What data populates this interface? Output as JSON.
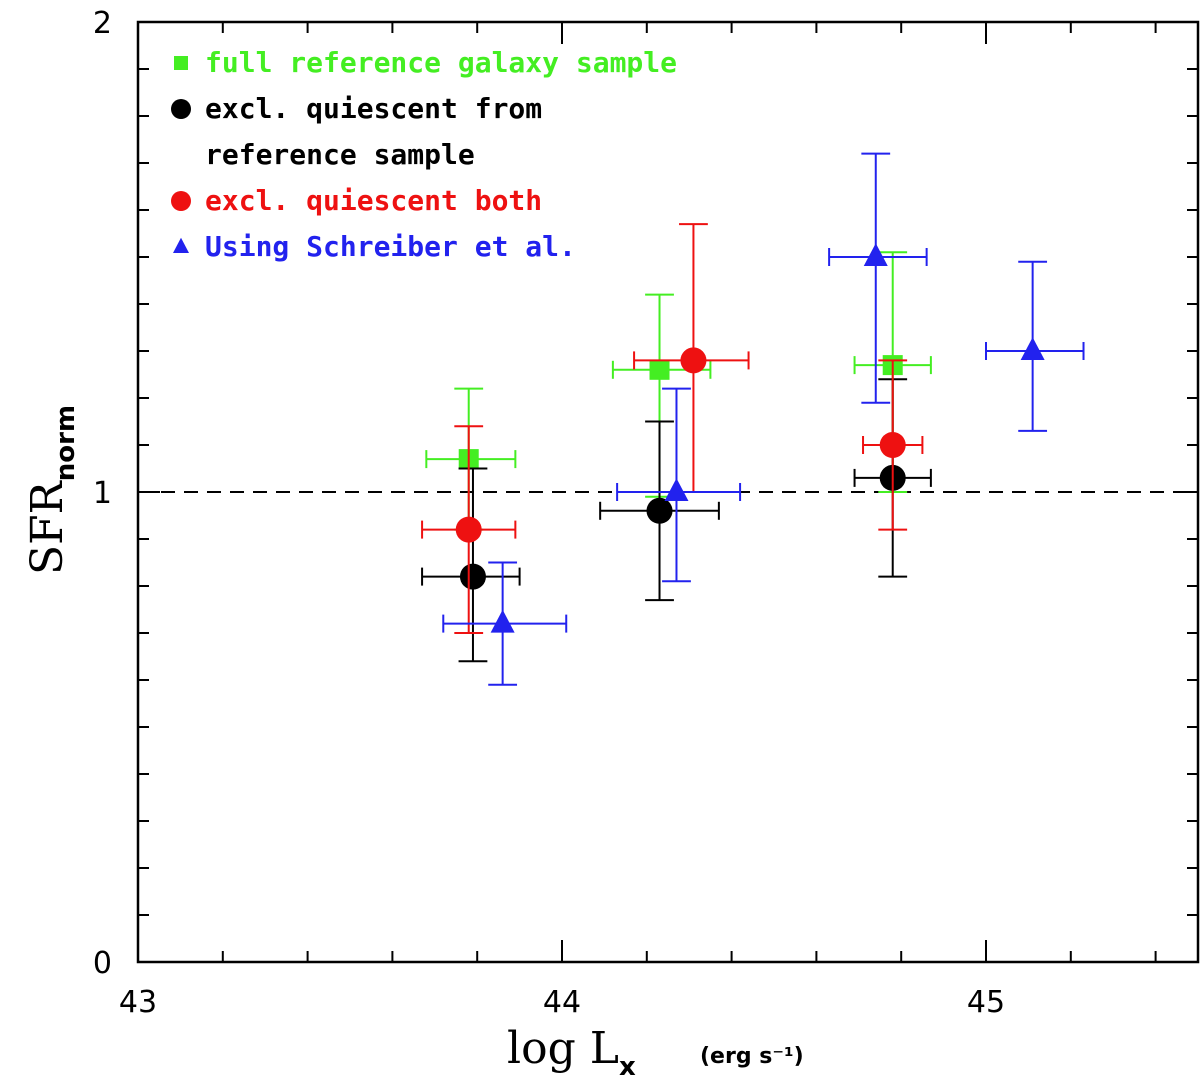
{
  "chart_data": {
    "type": "scatter",
    "xlabel": "log L",
    "xlabel_sub": "x",
    "xlabel_unit": "(erg s⁻¹)",
    "ylabel": "SFR",
    "ylabel_sub": "norm",
    "xlim": [
      43,
      45.5
    ],
    "ylim": [
      0,
      2
    ],
    "xticks": [
      43,
      44,
      45
    ],
    "xtick_labels": [
      "43",
      "44",
      "45"
    ],
    "yticks": [
      0,
      1,
      2
    ],
    "ytick_labels": [
      "0",
      "1",
      "2"
    ],
    "reference_line": {
      "y": 1,
      "style": "dashed"
    },
    "legend_position": "top-left",
    "series": [
      {
        "name": "full reference galaxy sample",
        "label_lines": [
          "full reference galaxy sample"
        ],
        "marker": "square",
        "color": "#44ee22",
        "points": [
          {
            "x": 43.78,
            "y": 1.07,
            "xerr": [
              0.1,
              0.11
            ],
            "yerr": [
              0.15,
              0.15
            ]
          },
          {
            "x": 44.23,
            "y": 1.26,
            "xerr": [
              0.11,
              0.12
            ],
            "yerr": [
              0.27,
              0.16
            ]
          },
          {
            "x": 44.78,
            "y": 1.27,
            "xerr": [
              0.09,
              0.09
            ],
            "yerr": [
              0.27,
              0.24
            ]
          }
        ]
      },
      {
        "name": "excl. quiescent from reference sample",
        "label_lines": [
          "excl. quiescent from",
          "reference sample"
        ],
        "marker": "circle",
        "color": "#000000",
        "points": [
          {
            "x": 43.79,
            "y": 0.82,
            "xerr": [
              0.12,
              0.11
            ],
            "yerr": [
              0.18,
              0.23
            ]
          },
          {
            "x": 44.23,
            "y": 0.96,
            "xerr": [
              0.14,
              0.14
            ],
            "yerr": [
              0.19,
              0.19
            ]
          },
          {
            "x": 44.78,
            "y": 1.03,
            "xerr": [
              0.09,
              0.09
            ],
            "yerr": [
              0.21,
              0.21
            ]
          }
        ]
      },
      {
        "name": "excl. quiescent both",
        "label_lines": [
          "excl. quiescent both"
        ],
        "marker": "circle",
        "color": "#ee1111",
        "points": [
          {
            "x": 43.78,
            "y": 0.92,
            "xerr": [
              0.11,
              0.11
            ],
            "yerr": [
              0.22,
              0.22
            ]
          },
          {
            "x": 44.31,
            "y": 1.28,
            "xerr": [
              0.14,
              0.13
            ],
            "yerr": [
              0.28,
              0.29
            ]
          },
          {
            "x": 44.78,
            "y": 1.1,
            "xerr": [
              0.07,
              0.07
            ],
            "yerr": [
              0.18,
              0.18
            ]
          }
        ]
      },
      {
        "name": "Using Schreiber et al.",
        "label_lines": [
          "Using Schreiber et al."
        ],
        "marker": "triangle",
        "color": "#2222ee",
        "points": [
          {
            "x": 43.86,
            "y": 0.72,
            "xerr": [
              0.14,
              0.15
            ],
            "yerr": [
              0.13,
              0.13
            ]
          },
          {
            "x": 44.27,
            "y": 1.0,
            "xerr": [
              0.14,
              0.15
            ],
            "yerr": [
              0.19,
              0.22
            ]
          },
          {
            "x": 44.74,
            "y": 1.5,
            "xerr": [
              0.11,
              0.12
            ],
            "yerr": [
              0.31,
              0.22
            ]
          },
          {
            "x": 45.11,
            "y": 1.3,
            "xerr": [
              0.11,
              0.12
            ],
            "yerr": [
              0.17,
              0.19
            ]
          }
        ]
      }
    ]
  }
}
